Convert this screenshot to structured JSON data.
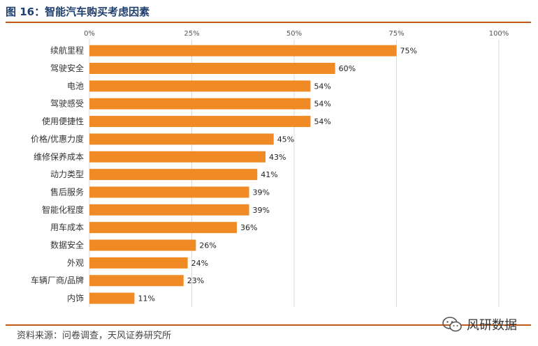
{
  "header": {
    "title": "图 16：智能汽车购买考虑因素"
  },
  "footer": {
    "source": "资料来源：问卷调查，天风证券研究所"
  },
  "watermark": {
    "text": "风研数据",
    "icon": "wechat-icon"
  },
  "colors": {
    "bar": "#F08A24",
    "grid": "#D9D9D9",
    "title": "#1F3F6E",
    "rule": "#C45A1A"
  },
  "chart_data": {
    "type": "bar",
    "orientation": "horizontal",
    "title": "",
    "xlabel": "",
    "ylabel": "",
    "xlim": [
      0,
      100
    ],
    "ticks": [
      "0%",
      "25%",
      "50%",
      "75%",
      "100%"
    ],
    "tick_values": [
      0,
      25,
      50,
      75,
      100
    ],
    "grid": true,
    "categories": [
      "续航里程",
      "驾驶安全",
      "电池",
      "驾驶感受",
      "使用便捷性",
      "价格/优惠力度",
      "维修保养成本",
      "动力类型",
      "售后服务",
      "智能化程度",
      "用车成本",
      "数据安全",
      "外观",
      "车辆厂商/品牌",
      "内饰"
    ],
    "values": [
      75,
      60,
      54,
      54,
      54,
      45,
      43,
      41,
      39,
      39,
      36,
      26,
      24,
      23,
      11
    ],
    "value_labels": [
      "75%",
      "60%",
      "54%",
      "54%",
      "54%",
      "45%",
      "43%",
      "41%",
      "39%",
      "39%",
      "36%",
      "26%",
      "24%",
      "23%",
      "11%"
    ]
  }
}
